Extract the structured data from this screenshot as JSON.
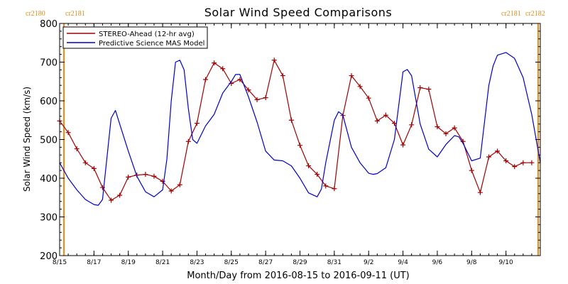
{
  "chart_data": {
    "type": "line",
    "title": "Solar Wind Speed Comparisons",
    "xlabel": "Month/Day from 2016-08-15 to 2016-09-11 (UT)",
    "ylabel": "Solar Wind Speed (km/s)",
    "ylim": [
      200,
      800
    ],
    "xlim": [
      "2016-08-15",
      "2016-09-12"
    ],
    "yticks": [
      "200",
      "300",
      "400",
      "500",
      "600",
      "700",
      "800"
    ],
    "x_tick_labels": [
      "8/15",
      "8/17",
      "8/19",
      "8/21",
      "8/23",
      "8/25",
      "8/27",
      "8/29",
      "8/31",
      "9/2",
      "9/4",
      "9/6",
      "9/8",
      "9/10"
    ],
    "x_tick_dates": [
      "2016-08-15",
      "2016-08-17",
      "2016-08-19",
      "2016-08-21",
      "2016-08-23",
      "2016-08-25",
      "2016-08-27",
      "2016-08-29",
      "2016-08-31",
      "2016-09-02",
      "2016-09-04",
      "2016-09-06",
      "2016-09-08",
      "2016-09-10"
    ],
    "carrington_labels": {
      "left": [
        "cr2180",
        "cr2181"
      ],
      "right": [
        "cr2181",
        "cr2182"
      ]
    },
    "carrington_marker_dates": [
      "2016-08-15 06:00",
      "2016-09-11 21:00"
    ],
    "legend_position": "top-left",
    "series": [
      {
        "name": "STEREO-Ahead (12-hr avg)",
        "color": "#a00000",
        "marker": "plus",
        "x": [
          "2016-08-15 00:00",
          "2016-08-15 12:00",
          "2016-08-16 00:00",
          "2016-08-16 12:00",
          "2016-08-17 00:00",
          "2016-08-17 12:00",
          "2016-08-18 00:00",
          "2016-08-18 12:00",
          "2016-08-19 00:00",
          "2016-08-19 12:00",
          "2016-08-20 00:00",
          "2016-08-20 12:00",
          "2016-08-21 00:00",
          "2016-08-21 12:00",
          "2016-08-22 00:00",
          "2016-08-22 12:00",
          "2016-08-23 00:00",
          "2016-08-23 12:00",
          "2016-08-24 00:00",
          "2016-08-24 12:00",
          "2016-08-25 00:00",
          "2016-08-25 12:00",
          "2016-08-26 00:00",
          "2016-08-26 12:00",
          "2016-08-27 00:00",
          "2016-08-27 12:00",
          "2016-08-28 00:00",
          "2016-08-28 12:00",
          "2016-08-29 00:00",
          "2016-08-29 12:00",
          "2016-08-30 00:00",
          "2016-08-30 12:00",
          "2016-08-31 00:00",
          "2016-08-31 12:00",
          "2016-09-01 00:00",
          "2016-09-01 12:00",
          "2016-09-02 00:00",
          "2016-09-02 12:00",
          "2016-09-03 00:00",
          "2016-09-03 12:00",
          "2016-09-04 00:00",
          "2016-09-04 12:00",
          "2016-09-05 00:00",
          "2016-09-05 12:00",
          "2016-09-06 00:00",
          "2016-09-06 12:00",
          "2016-09-07 00:00",
          "2016-09-07 12:00",
          "2016-09-08 00:00",
          "2016-09-08 12:00",
          "2016-09-09 00:00",
          "2016-09-09 12:00",
          "2016-09-10 00:00",
          "2016-09-10 12:00",
          "2016-09-11 00:00",
          "2016-09-11 12:00"
        ],
        "values": [
          548,
          518,
          476,
          440,
          425,
          376,
          343,
          356,
          403,
          408,
          410,
          405,
          392,
          367,
          383,
          495,
          542,
          655,
          698,
          683,
          645,
          655,
          628,
          603,
          608,
          705,
          665,
          550,
          485,
          432,
          410,
          380,
          373,
          562,
          665,
          637,
          607,
          548,
          563,
          542,
          486,
          538,
          634,
          630,
          533,
          515,
          530,
          495,
          420,
          363,
          455,
          470,
          445,
          430,
          440,
          440
        ]
      },
      {
        "name": "Predictive Science MAS Model",
        "color": "#0000c8",
        "marker": "none",
        "x": [
          "2016-08-15 00:00",
          "2016-08-15 12:00",
          "2016-08-16 00:00",
          "2016-08-16 12:00",
          "2016-08-17 00:00",
          "2016-08-17 06:00",
          "2016-08-17 12:00",
          "2016-08-18 00:00",
          "2016-08-18 06:00",
          "2016-08-18 12:00",
          "2016-08-19 00:00",
          "2016-08-19 12:00",
          "2016-08-20 00:00",
          "2016-08-20 12:00",
          "2016-08-21 00:00",
          "2016-08-21 06:00",
          "2016-08-21 12:00",
          "2016-08-21 18:00",
          "2016-08-22 00:00",
          "2016-08-22 06:00",
          "2016-08-22 12:00",
          "2016-08-22 18:00",
          "2016-08-23 00:00",
          "2016-08-23 12:00",
          "2016-08-24 00:00",
          "2016-08-24 12:00",
          "2016-08-25 00:00",
          "2016-08-25 06:00",
          "2016-08-25 12:00",
          "2016-08-26 00:00",
          "2016-08-26 12:00",
          "2016-08-27 00:00",
          "2016-08-27 12:00",
          "2016-08-28 00:00",
          "2016-08-28 12:00",
          "2016-08-29 00:00",
          "2016-08-29 12:00",
          "2016-08-30 00:00",
          "2016-08-30 06:00",
          "2016-08-30 12:00",
          "2016-08-31 00:00",
          "2016-08-31 06:00",
          "2016-08-31 12:00",
          "2016-09-01 00:00",
          "2016-09-01 12:00",
          "2016-09-02 00:00",
          "2016-09-02 06:00",
          "2016-09-02 12:00",
          "2016-09-03 00:00",
          "2016-09-03 12:00",
          "2016-09-04 00:00",
          "2016-09-04 06:00",
          "2016-09-04 12:00",
          "2016-09-05 00:00",
          "2016-09-05 12:00",
          "2016-09-06 00:00",
          "2016-09-06 12:00",
          "2016-09-07 00:00",
          "2016-09-07 06:00",
          "2016-09-07 12:00",
          "2016-09-08 00:00",
          "2016-09-08 12:00",
          "2016-09-09 00:00",
          "2016-09-09 06:00",
          "2016-09-09 12:00",
          "2016-09-10 00:00",
          "2016-09-10 12:00",
          "2016-09-11 00:00",
          "2016-09-11 12:00",
          "2016-09-12 00:00"
        ],
        "values": [
          440,
          400,
          370,
          345,
          332,
          330,
          345,
          555,
          575,
          540,
          470,
          405,
          365,
          352,
          370,
          450,
          600,
          700,
          705,
          680,
          580,
          500,
          490,
          535,
          565,
          620,
          650,
          668,
          668,
          610,
          545,
          470,
          447,
          445,
          432,
          400,
          362,
          352,
          372,
          440,
          550,
          572,
          563,
          480,
          440,
          413,
          410,
          412,
          427,
          500,
          675,
          681,
          665,
          540,
          475,
          455,
          487,
          510,
          507,
          490,
          445,
          452,
          640,
          690,
          718,
          725,
          710,
          660,
          565,
          440
        ]
      }
    ]
  }
}
